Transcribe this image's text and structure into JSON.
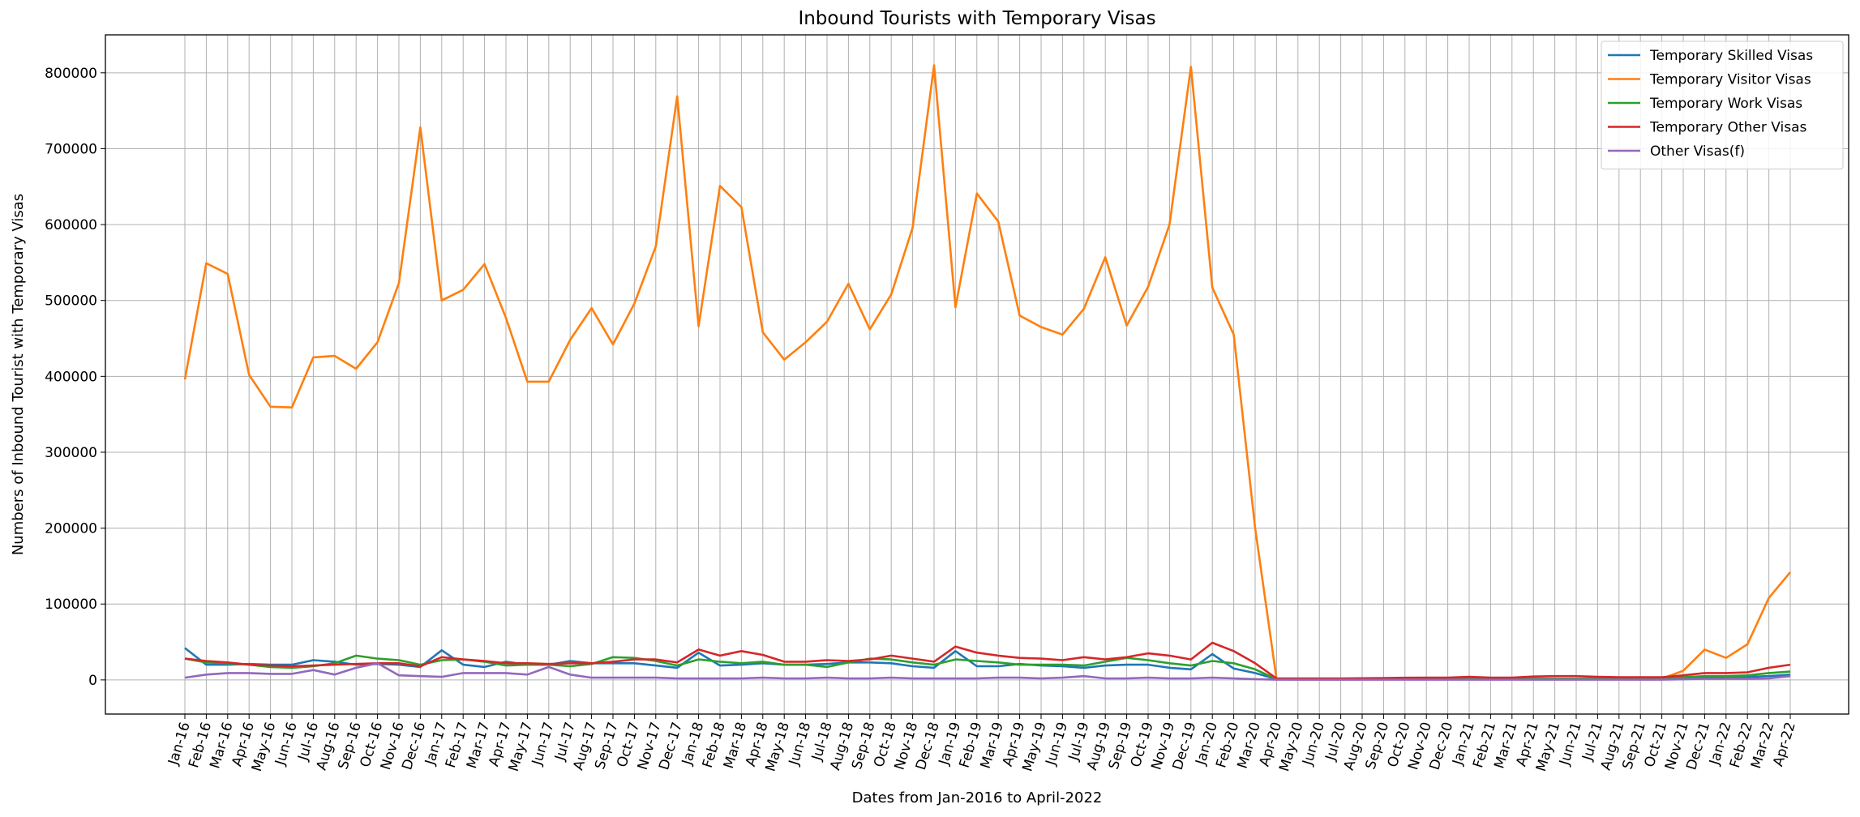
{
  "chart_data": {
    "type": "line",
    "title": "Inbound Tourists with Temporary Visas",
    "xlabel": "Dates from Jan-2016 to April-2022",
    "ylabel": "Numbers of Inbound Tourist with Temporary Visas",
    "ylim": [
      -45000,
      850000
    ],
    "yticks": [
      0,
      100000,
      200000,
      300000,
      400000,
      500000,
      600000,
      700000,
      800000
    ],
    "grid": true,
    "legend": "top-right",
    "x": [
      "Jan-16",
      "Feb-16",
      "Mar-16",
      "Apr-16",
      "May-16",
      "Jun-16",
      "Jul-16",
      "Aug-16",
      "Sep-16",
      "Oct-16",
      "Nov-16",
      "Dec-16",
      "Jan-17",
      "Feb-17",
      "Mar-17",
      "Apr-17",
      "May-17",
      "Jun-17",
      "Jul-17",
      "Aug-17",
      "Sep-17",
      "Oct-17",
      "Nov-17",
      "Dec-17",
      "Jan-18",
      "Feb-18",
      "Mar-18",
      "Apr-18",
      "May-18",
      "Jun-18",
      "Jul-18",
      "Aug-18",
      "Sep-18",
      "Oct-18",
      "Nov-18",
      "Dec-18",
      "Jan-19",
      "Feb-19",
      "Mar-19",
      "Apr-19",
      "May-19",
      "Jun-19",
      "Jul-19",
      "Aug-19",
      "Sep-19",
      "Oct-19",
      "Nov-19",
      "Dec-19",
      "Jan-20",
      "Feb-20",
      "Mar-20",
      "Apr-20",
      "May-20",
      "Jun-20",
      "Jul-20",
      "Aug-20",
      "Sep-20",
      "Oct-20",
      "Nov-20",
      "Dec-20",
      "Jan-21",
      "Feb-21",
      "Mar-21",
      "Apr-21",
      "May-21",
      "Jun-21",
      "Jul-21",
      "Aug-21",
      "Sep-21",
      "Oct-21",
      "Nov-21",
      "Dec-21",
      "Jan-22",
      "Feb-22",
      "Mar-22",
      "Apr-22"
    ],
    "series": [
      {
        "name": "Temporary Skilled Visas",
        "color": "#1f77b4",
        "values": [
          42000,
          20000,
          20000,
          21000,
          20000,
          20000,
          26000,
          24000,
          20000,
          21000,
          20000,
          17000,
          39000,
          20000,
          17000,
          24000,
          20000,
          20000,
          25000,
          22000,
          22000,
          22000,
          19000,
          16000,
          36000,
          19000,
          20000,
          22000,
          20000,
          20000,
          21000,
          23000,
          23000,
          22000,
          18000,
          16000,
          38000,
          18000,
          18000,
          21000,
          19000,
          18000,
          16000,
          19000,
          20000,
          20000,
          16000,
          14000,
          34000,
          15000,
          9000,
          1000,
          900,
          900,
          900,
          1000,
          1000,
          1000,
          1000,
          1000,
          1200,
          1200,
          1200,
          1500,
          1500,
          1500,
          1500,
          1500,
          1500,
          1500,
          2000,
          3000,
          4000,
          4000,
          5000,
          7000
        ]
      },
      {
        "name": "Temporary Visitor Visas",
        "color": "#ff7f0e",
        "values": [
          396000,
          549000,
          535000,
          402000,
          360000,
          359000,
          425000,
          427000,
          410000,
          445000,
          523000,
          728000,
          500000,
          514000,
          548000,
          477000,
          393000,
          393000,
          448000,
          490000,
          442000,
          496000,
          571000,
          769000,
          466000,
          651000,
          623000,
          458000,
          422000,
          445000,
          472000,
          522000,
          462000,
          508000,
          596000,
          810000,
          491000,
          641000,
          604000,
          480000,
          465000,
          455000,
          489000,
          557000,
          467000,
          518000,
          600000,
          808000,
          517000,
          455000,
          200000,
          1000,
          500,
          500,
          500,
          600,
          700,
          800,
          900,
          1000,
          1000,
          1000,
          1000,
          1500,
          1500,
          1500,
          1500,
          1500,
          1500,
          1800,
          12000,
          40000,
          29000,
          47000,
          108000,
          142000
        ]
      },
      {
        "name": "Temporary Work Visas",
        "color": "#2ca02c",
        "values": [
          28000,
          23000,
          22000,
          20000,
          17000,
          16000,
          18000,
          22000,
          32000,
          28000,
          26000,
          20000,
          26000,
          27000,
          24000,
          19000,
          20000,
          20000,
          18000,
          21000,
          30000,
          29000,
          25000,
          19000,
          27000,
          24000,
          22000,
          24000,
          20000,
          20000,
          17000,
          23000,
          28000,
          27000,
          23000,
          20000,
          27000,
          25000,
          23000,
          20000,
          20000,
          20000,
          19000,
          24000,
          29000,
          26000,
          22000,
          19000,
          25000,
          22000,
          14000,
          1000,
          800,
          800,
          800,
          900,
          900,
          1000,
          1000,
          1000,
          1200,
          1200,
          1200,
          1500,
          1500,
          1500,
          1500,
          1500,
          1500,
          2000,
          3500,
          5000,
          5000,
          6000,
          9000,
          11000
        ]
      },
      {
        "name": "Temporary Other Visas",
        "color": "#d62728",
        "values": [
          28000,
          25000,
          23000,
          20000,
          19000,
          18000,
          19000,
          20000,
          21000,
          22000,
          22000,
          18000,
          30000,
          27000,
          25000,
          22000,
          22000,
          21000,
          22000,
          22000,
          24000,
          27000,
          27000,
          23000,
          40000,
          32000,
          38000,
          33000,
          24000,
          24000,
          26000,
          25000,
          27000,
          32000,
          28000,
          24000,
          44000,
          36000,
          32000,
          29000,
          28000,
          26000,
          30000,
          27000,
          30000,
          35000,
          32000,
          27000,
          49000,
          38000,
          22000,
          2000,
          2000,
          2000,
          2000,
          2200,
          2500,
          2800,
          3000,
          3000,
          4000,
          3000,
          3000,
          4500,
          5000,
          5000,
          4000,
          3500,
          3500,
          3500,
          6000,
          9000,
          9000,
          10000,
          16000,
          20000
        ]
      },
      {
        "name": "Other Visas(f)",
        "color": "#9467bd",
        "values": [
          3000,
          7000,
          9000,
          9000,
          8000,
          8000,
          13000,
          7000,
          16000,
          22000,
          6000,
          5000,
          4000,
          9000,
          9000,
          9000,
          7000,
          17000,
          7000,
          3000,
          3000,
          3000,
          3000,
          2000,
          2000,
          2000,
          2000,
          3000,
          2000,
          2000,
          3000,
          2000,
          2000,
          3000,
          2000,
          2000,
          2000,
          2000,
          3000,
          3000,
          2000,
          3000,
          5000,
          2000,
          2000,
          3000,
          2000,
          2000,
          3000,
          2000,
          1000,
          300,
          300,
          300,
          300,
          300,
          300,
          300,
          300,
          300,
          300,
          300,
          300,
          300,
          300,
          300,
          300,
          300,
          300,
          300,
          800,
          1500,
          1500,
          1500,
          2000,
          5000
        ]
      }
    ]
  }
}
